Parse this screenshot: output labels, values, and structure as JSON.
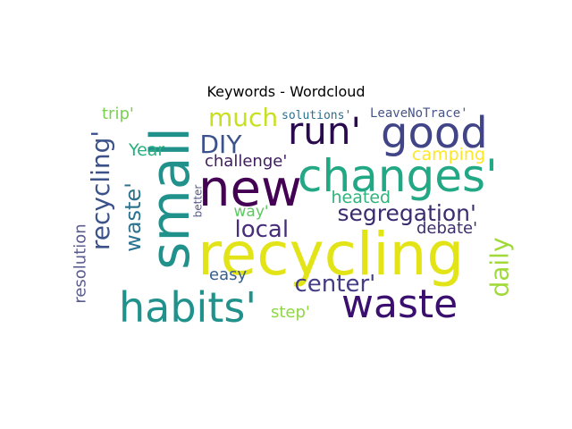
{
  "chart_data": {
    "type": "wordcloud",
    "title": "Keywords - Wordcloud",
    "words": [
      {
        "text": "recycling",
        "weight": 1.0,
        "color": "#e2e418"
      },
      {
        "text": "new",
        "weight": 0.85,
        "color": "#440154"
      },
      {
        "text": "small",
        "weight": 0.85,
        "color": "#21918c"
      },
      {
        "text": "waste",
        "weight": 0.62,
        "color": "#3b0f70"
      },
      {
        "text": "habits'",
        "weight": 0.62,
        "color": "#21918c"
      },
      {
        "text": "changes'",
        "weight": 0.58,
        "color": "#22a884"
      },
      {
        "text": "good",
        "weight": 0.55,
        "color": "#414487"
      },
      {
        "text": "run'",
        "weight": 0.52,
        "color": "#2a0a4e"
      },
      {
        "text": "recycling'",
        "weight": 0.38,
        "color": "#3b528b"
      },
      {
        "text": "waste'",
        "weight": 0.3,
        "color": "#2c728e"
      },
      {
        "text": "segregation'",
        "weight": 0.3,
        "color": "#3a2c6e"
      },
      {
        "text": "much",
        "weight": 0.28,
        "color": "#c8e020"
      },
      {
        "text": "daily",
        "weight": 0.26,
        "color": "#a0da39"
      },
      {
        "text": "local",
        "weight": 0.25,
        "color": "#472c7a"
      },
      {
        "text": "center'",
        "weight": 0.25,
        "color": "#433e85"
      },
      {
        "text": "DIY",
        "weight": 0.25,
        "color": "#3b528b"
      },
      {
        "text": "resolution",
        "weight": 0.18,
        "color": "#5b5c8e"
      },
      {
        "text": "challenge'",
        "weight": 0.18,
        "color": "#3e1e5c"
      },
      {
        "text": "heated",
        "weight": 0.18,
        "color": "#2fb47c"
      },
      {
        "text": "camping",
        "weight": 0.17,
        "color": "#fde725"
      },
      {
        "text": "Year",
        "weight": 0.17,
        "color": "#29af7f"
      },
      {
        "text": "trip'",
        "weight": 0.17,
        "color": "#7ad151"
      },
      {
        "text": "easy",
        "weight": 0.17,
        "color": "#355f8d"
      },
      {
        "text": "debate'",
        "weight": 0.15,
        "color": "#3e2f6a"
      },
      {
        "text": "way'",
        "weight": 0.15,
        "color": "#5ec962"
      },
      {
        "text": "step'",
        "weight": 0.15,
        "color": "#8fd744"
      },
      {
        "text": "solutions'",
        "weight": 0.12,
        "color": "#2d708e"
      },
      {
        "text": "LeaveNoTrace'",
        "weight": 0.12,
        "color": "#46548a"
      },
      {
        "text": "better",
        "weight": 0.1,
        "color": "#5a5a8a"
      }
    ]
  }
}
